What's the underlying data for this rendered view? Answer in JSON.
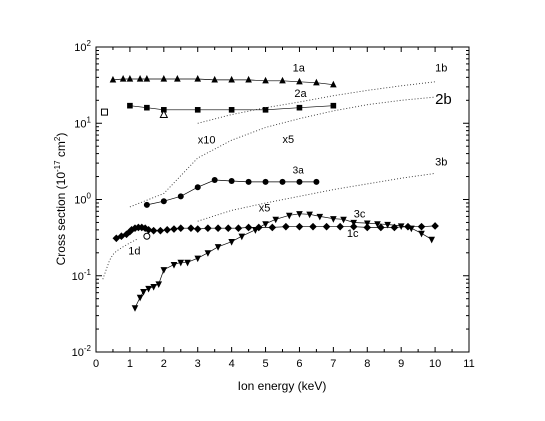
{
  "chart_data": {
    "type": "scatter",
    "title": "",
    "xlabel": "Ion energy (keV)",
    "ylabel": "Cross section (10^-17 cm^2)",
    "xlim": [
      0,
      11
    ],
    "ylim": [
      0.01,
      100
    ],
    "yscale": "log",
    "grid": false,
    "x_ticks": [
      "0",
      "1",
      "2",
      "3",
      "4",
      "5",
      "6",
      "7",
      "8",
      "9",
      "10",
      "11"
    ],
    "y_ticks": [
      {
        "base": "10",
        "exp": "-2",
        "value": 0.01
      },
      {
        "base": "10",
        "exp": "-1",
        "value": 0.1
      },
      {
        "base": "10",
        "exp": "0",
        "value": 1
      },
      {
        "base": "10",
        "exp": "1",
        "value": 10
      },
      {
        "base": "10",
        "exp": "2",
        "value": 100
      }
    ],
    "ylabel_parts": {
      "main": "Cross section (10",
      "exp1": "-17",
      "mid": " cm",
      "exp2": "2",
      "end": ")"
    },
    "series": [
      {
        "label": "1a",
        "marker": "triangle-up",
        "line": "solid",
        "x": [
          0.5,
          0.8,
          1.0,
          1.3,
          1.5,
          2.0,
          2.4,
          3.0,
          3.5,
          4.0,
          4.5,
          5.0,
          5.5,
          6.0,
          6.5,
          7.0
        ],
        "y": [
          37,
          38,
          38,
          38,
          38,
          38,
          38,
          38,
          37,
          37,
          37,
          36,
          36,
          35,
          34,
          32
        ]
      },
      {
        "label": "2a",
        "marker": "square",
        "line": "solid",
        "x": [
          1.0,
          1.5,
          2.0,
          3.0,
          4.0,
          5.0,
          6.0,
          7.0
        ],
        "y": [
          17,
          16,
          15,
          15,
          15,
          15,
          16,
          17
        ]
      },
      {
        "label": "3a",
        "marker": "circle",
        "line": "solid",
        "x": [
          1.5,
          2.0,
          2.5,
          3.0,
          3.5,
          4.0,
          4.5,
          5.0,
          5.5,
          6.0,
          6.5
        ],
        "y": [
          0.85,
          0.95,
          1.1,
          1.45,
          1.8,
          1.75,
          1.7,
          1.7,
          1.7,
          1.7,
          1.7
        ]
      },
      {
        "label": "1c",
        "marker": "diamond",
        "line": "solid",
        "x": [
          0.6,
          0.75,
          0.9,
          1.0,
          1.05,
          1.15,
          1.25,
          1.35,
          1.45,
          1.55,
          1.7,
          1.9,
          2.1,
          2.3,
          2.5,
          2.8,
          3.0,
          3.3,
          3.6,
          3.9,
          4.2,
          4.5,
          4.8,
          5.2,
          5.6,
          6.0,
          6.4,
          6.8,
          7.2,
          7.6,
          8.0,
          8.4,
          8.8,
          9.2,
          9.6,
          10.0
        ],
        "y": [
          0.31,
          0.33,
          0.35,
          0.38,
          0.4,
          0.42,
          0.43,
          0.43,
          0.42,
          0.4,
          0.39,
          0.39,
          0.4,
          0.41,
          0.42,
          0.42,
          0.41,
          0.42,
          0.42,
          0.42,
          0.42,
          0.43,
          0.43,
          0.43,
          0.44,
          0.44,
          0.44,
          0.44,
          0.44,
          0.44,
          0.43,
          0.43,
          0.43,
          0.44,
          0.44,
          0.45
        ]
      },
      {
        "label": "3c",
        "marker": "triangle-down",
        "line": "solid",
        "x": [
          1.15,
          1.3,
          1.4,
          1.55,
          1.7,
          1.85,
          2.0,
          2.3,
          2.5,
          2.7,
          3.0,
          3.3,
          3.6,
          4.0,
          4.3,
          4.7,
          5.0,
          5.3,
          5.7,
          6.0,
          6.3,
          6.6,
          7.0,
          7.3,
          7.6,
          8.0,
          8.3,
          8.6,
          9.0,
          9.3,
          9.6,
          9.9
        ],
        "y": [
          0.038,
          0.052,
          0.062,
          0.068,
          0.072,
          0.078,
          0.12,
          0.14,
          0.15,
          0.15,
          0.17,
          0.2,
          0.24,
          0.28,
          0.33,
          0.4,
          0.48,
          0.55,
          0.62,
          0.65,
          0.64,
          0.6,
          0.56,
          0.55,
          0.5,
          0.49,
          0.48,
          0.47,
          0.45,
          0.42,
          0.36,
          0.3
        ]
      },
      {
        "label": "1b",
        "marker": "none",
        "line": "dotted",
        "x": [
          3.0,
          4.0,
          5.0,
          6.0,
          7.0,
          8.0,
          9.0,
          10.0
        ],
        "y": [
          10,
          13,
          16,
          19,
          23,
          27,
          31,
          35
        ]
      },
      {
        "label": "2b",
        "marker": "none",
        "line": "dotted",
        "x": [
          1.0,
          2.0,
          3.0,
          4.0,
          5.0,
          6.0,
          7.0,
          8.0,
          9.0,
          10.0
        ],
        "y": [
          0.8,
          1.2,
          3.5,
          6,
          8.8,
          11.5,
          14.5,
          17.5,
          20,
          22
        ]
      },
      {
        "label": "3b",
        "marker": "none",
        "line": "dotted",
        "x": [
          3.0,
          4.0,
          5.0,
          6.0,
          7.0,
          8.0,
          9.0,
          10.0
        ],
        "y": [
          0.52,
          0.72,
          0.9,
          1.1,
          1.35,
          1.6,
          1.9,
          2.2
        ]
      },
      {
        "label": "1d",
        "marker": "none",
        "line": "dotted",
        "x": [
          0.2,
          0.3,
          0.4,
          0.5,
          0.6,
          0.8,
          1.0,
          1.2
        ],
        "y": [
          0.09,
          0.12,
          0.16,
          0.19,
          0.21,
          0.24,
          0.27,
          0.3
        ]
      }
    ],
    "extra_points": [
      {
        "marker": "open-square",
        "x": 0.25,
        "y": 14
      },
      {
        "marker": "open-triangle",
        "x": 2.0,
        "y": 13
      },
      {
        "marker": "open-circle",
        "x": 1.5,
        "y": 0.33
      }
    ],
    "annotations": [
      {
        "text": "1a",
        "x": 5.8,
        "y": 48
      },
      {
        "text": "1b",
        "x": 10.0,
        "y": 48
      },
      {
        "text": "2a",
        "x": 5.85,
        "y": 22
      },
      {
        "text": "2b",
        "x": 10.0,
        "y": 18
      },
      {
        "text": "3a",
        "x": 5.8,
        "y": 2.2
      },
      {
        "text": "3b",
        "x": 10.0,
        "y": 2.8
      },
      {
        "text": "3c",
        "x": 7.6,
        "y": 0.58
      },
      {
        "text": "1c",
        "x": 7.4,
        "y": 0.32
      },
      {
        "text": "1d",
        "x": 0.95,
        "y": 0.19
      },
      {
        "text": "x10",
        "x": 3.0,
        "y": 5.4
      },
      {
        "text": "x5",
        "x": 5.5,
        "y": 5.5
      },
      {
        "text": "x5",
        "x": 4.8,
        "y": 0.7
      }
    ]
  }
}
